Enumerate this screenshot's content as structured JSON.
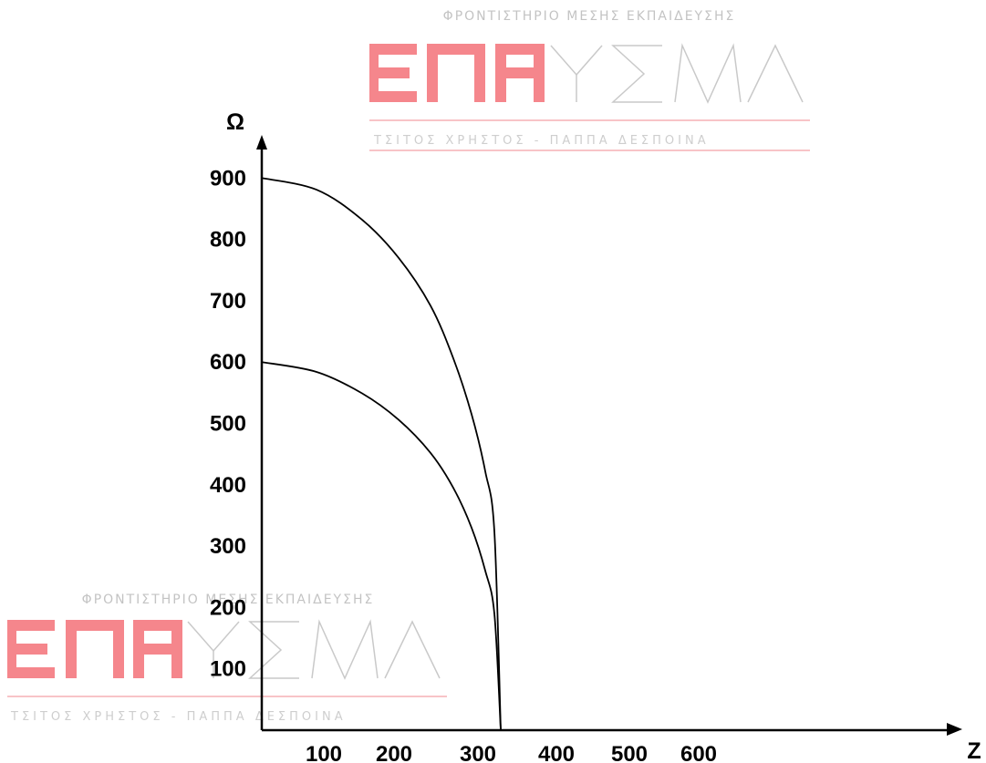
{
  "chart_data": {
    "type": "line",
    "xlabel": "Z",
    "ylabel": "Ω",
    "xlim": [
      0,
      660
    ],
    "ylim": [
      0,
      960
    ],
    "x_ticks": [
      100,
      200,
      300,
      400,
      500,
      600
    ],
    "y_ticks": [
      100,
      200,
      300,
      400,
      500,
      600,
      700,
      800,
      900
    ],
    "grid": false,
    "series": [
      {
        "color": "#000000",
        "x": [
          0,
          60,
          110,
          150,
          185,
          210,
          230,
          245,
          255,
          262
        ],
        "y": [
          900,
          881,
          832,
          770,
          692,
          606,
          515,
          422,
          324,
          0
        ]
      },
      {
        "color": "#000000",
        "x": [
          0,
          60,
          110,
          150,
          185,
          210,
          230,
          245,
          255,
          262
        ],
        "y": [
          600,
          584,
          549,
          506,
          452,
          395,
          330,
          260,
          190,
          0
        ]
      }
    ]
  },
  "watermark": {
    "top_text": "ΦΡΟΝΤΙΣΤΗΡΙΟ ΜΕΣΗΣ ΕΚΠΑΙΔΕΥΣΗΣ",
    "logo_word": "ΕΝΑΥΣΜΑ",
    "bottom_text": "ΤΣΙΤΟΣ ΧΡΗΣΤΟΣ - ΠΑΠΠΑ ΔΕΣΠΟΙΝΑ",
    "color_red": "#f47a80",
    "color_gray": "#c4c4c4"
  }
}
